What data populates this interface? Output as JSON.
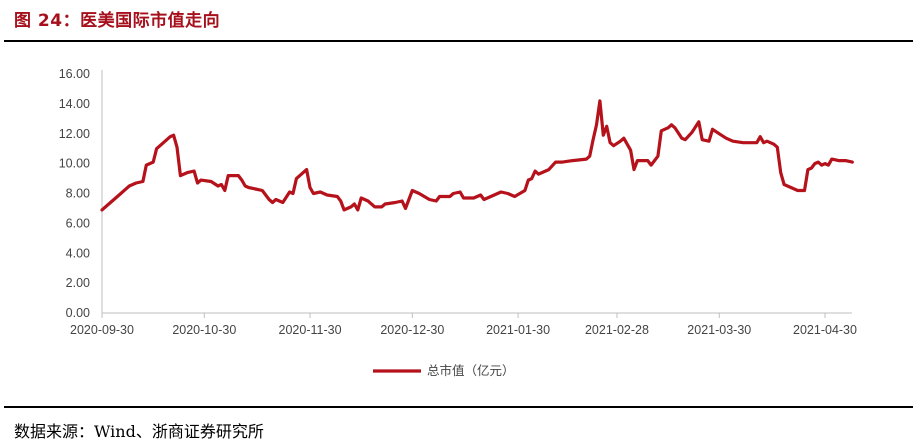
{
  "header": {
    "title": "图 24：医美国际市值走向"
  },
  "footer": {
    "source": "数据来源：Wind、浙商证券研究所"
  },
  "colors": {
    "title": "#a6101d",
    "series": "#b5121b",
    "axis": "#bfbfbf",
    "text": "#444444"
  },
  "chart_data": {
    "type": "line",
    "title": "",
    "xlabel": "",
    "ylabel": "",
    "ylim": [
      0,
      16
    ],
    "yticks": [
      "0.00",
      "2.00",
      "4.00",
      "6.00",
      "8.00",
      "10.00",
      "12.00",
      "14.00",
      "16.00"
    ],
    "xticks": [
      "2020-09-30",
      "2020-10-30",
      "2020-11-30",
      "2020-12-30",
      "2021-01-30",
      "2021-02-28",
      "2021-03-30",
      "2021-04-30"
    ],
    "grid": false,
    "legend": "bottom",
    "series": [
      {
        "name": "总市值（亿元）",
        "points": [
          [
            "2020-09-30",
            6.9
          ],
          [
            "2020-10-02",
            7.3
          ],
          [
            "2020-10-05",
            7.9
          ],
          [
            "2020-10-08",
            8.5
          ],
          [
            "2020-10-10",
            8.7
          ],
          [
            "2020-10-12",
            8.8
          ],
          [
            "2020-10-13",
            9.9
          ],
          [
            "2020-10-15",
            10.1
          ],
          [
            "2020-10-16",
            11.0
          ],
          [
            "2020-10-18",
            11.4
          ],
          [
            "2020-10-20",
            11.8
          ],
          [
            "2020-10-21",
            11.9
          ],
          [
            "2020-10-22",
            11.1
          ],
          [
            "2020-10-23",
            9.2
          ],
          [
            "2020-10-25",
            9.4
          ],
          [
            "2020-10-27",
            9.5
          ],
          [
            "2020-10-28",
            8.7
          ],
          [
            "2020-10-29",
            8.9
          ],
          [
            "2020-11-01",
            8.8
          ],
          [
            "2020-11-03",
            8.5
          ],
          [
            "2020-11-04",
            8.6
          ],
          [
            "2020-11-05",
            8.2
          ],
          [
            "2020-11-06",
            9.2
          ],
          [
            "2020-11-09",
            9.2
          ],
          [
            "2020-11-10",
            8.9
          ],
          [
            "2020-11-11",
            8.5
          ],
          [
            "2020-11-12",
            8.4
          ],
          [
            "2020-11-14",
            8.3
          ],
          [
            "2020-11-16",
            8.2
          ],
          [
            "2020-11-18",
            7.6
          ],
          [
            "2020-11-19",
            7.4
          ],
          [
            "2020-11-20",
            7.6
          ],
          [
            "2020-11-22",
            7.4
          ],
          [
            "2020-11-24",
            8.1
          ],
          [
            "2020-11-25",
            8.0
          ],
          [
            "2020-11-26",
            9.0
          ],
          [
            "2020-11-28",
            9.4
          ],
          [
            "2020-11-29",
            9.6
          ],
          [
            "2020-11-30",
            8.4
          ],
          [
            "2020-12-01",
            8.0
          ],
          [
            "2020-12-03",
            8.1
          ],
          [
            "2020-12-05",
            7.9
          ],
          [
            "2020-12-08",
            7.8
          ],
          [
            "2020-12-09",
            7.5
          ],
          [
            "2020-12-10",
            6.9
          ],
          [
            "2020-12-12",
            7.1
          ],
          [
            "2020-12-13",
            7.3
          ],
          [
            "2020-12-14",
            6.9
          ],
          [
            "2020-12-15",
            7.7
          ],
          [
            "2020-12-17",
            7.5
          ],
          [
            "2020-12-19",
            7.1
          ],
          [
            "2020-12-21",
            7.1
          ],
          [
            "2020-12-22",
            7.3
          ],
          [
            "2020-12-25",
            7.4
          ],
          [
            "2020-12-27",
            7.5
          ],
          [
            "2020-12-28",
            7.0
          ],
          [
            "2020-12-30",
            8.2
          ],
          [
            "2021-01-01",
            8.0
          ],
          [
            "2021-01-04",
            7.6
          ],
          [
            "2021-01-06",
            7.5
          ],
          [
            "2021-01-07",
            7.8
          ],
          [
            "2021-01-10",
            7.8
          ],
          [
            "2021-01-11",
            8.0
          ],
          [
            "2021-01-13",
            8.1
          ],
          [
            "2021-01-14",
            7.7
          ],
          [
            "2021-01-17",
            7.7
          ],
          [
            "2021-01-19",
            7.9
          ],
          [
            "2021-01-20",
            7.6
          ],
          [
            "2021-01-22",
            7.8
          ],
          [
            "2021-01-25",
            8.1
          ],
          [
            "2021-01-27",
            8.0
          ],
          [
            "2021-01-29",
            7.8
          ],
          [
            "2021-02-01",
            8.2
          ],
          [
            "2021-02-02",
            8.9
          ],
          [
            "2021-02-03",
            9.0
          ],
          [
            "2021-02-04",
            9.5
          ],
          [
            "2021-02-05",
            9.3
          ],
          [
            "2021-02-08",
            9.6
          ],
          [
            "2021-02-10",
            10.1
          ],
          [
            "2021-02-12",
            10.1
          ],
          [
            "2021-02-15",
            10.2
          ],
          [
            "2021-02-19",
            10.3
          ],
          [
            "2021-02-20",
            10.5
          ],
          [
            "2021-02-21",
            11.6
          ],
          [
            "2021-02-22",
            12.6
          ],
          [
            "2021-02-23",
            14.2
          ],
          [
            "2021-02-24",
            11.9
          ],
          [
            "2021-02-25",
            12.5
          ],
          [
            "2021-02-26",
            11.4
          ],
          [
            "2021-02-27",
            11.2
          ],
          [
            "2021-03-01",
            11.5
          ],
          [
            "2021-03-02",
            11.7
          ],
          [
            "2021-03-04",
            10.9
          ],
          [
            "2021-03-05",
            9.6
          ],
          [
            "2021-03-06",
            10.2
          ],
          [
            "2021-03-07",
            10.2
          ],
          [
            "2021-03-09",
            10.2
          ],
          [
            "2021-03-10",
            9.9
          ],
          [
            "2021-03-12",
            10.5
          ],
          [
            "2021-03-13",
            12.2
          ],
          [
            "2021-03-15",
            12.4
          ],
          [
            "2021-03-16",
            12.6
          ],
          [
            "2021-03-17",
            12.4
          ],
          [
            "2021-03-19",
            11.7
          ],
          [
            "2021-03-20",
            11.6
          ],
          [
            "2021-03-22",
            12.1
          ],
          [
            "2021-03-24",
            12.8
          ],
          [
            "2021-03-25",
            11.6
          ],
          [
            "2021-03-27",
            11.5
          ],
          [
            "2021-03-28",
            12.3
          ],
          [
            "2021-03-30",
            12.0
          ],
          [
            "2021-04-01",
            11.7
          ],
          [
            "2021-04-03",
            11.5
          ],
          [
            "2021-04-06",
            11.4
          ],
          [
            "2021-04-08",
            11.4
          ],
          [
            "2021-04-10",
            11.4
          ],
          [
            "2021-04-11",
            11.8
          ],
          [
            "2021-04-12",
            11.4
          ],
          [
            "2021-04-13",
            11.5
          ],
          [
            "2021-04-15",
            11.3
          ],
          [
            "2021-04-16",
            11.1
          ],
          [
            "2021-04-17",
            9.4
          ],
          [
            "2021-04-18",
            8.6
          ],
          [
            "2021-04-20",
            8.4
          ],
          [
            "2021-04-22",
            8.2
          ],
          [
            "2021-04-24",
            8.2
          ],
          [
            "2021-04-25",
            9.6
          ],
          [
            "2021-04-26",
            9.7
          ],
          [
            "2021-04-27",
            10.0
          ],
          [
            "2021-04-28",
            10.1
          ],
          [
            "2021-04-29",
            9.9
          ],
          [
            "2021-04-30",
            10.0
          ],
          [
            "2021-05-01",
            9.9
          ],
          [
            "2021-05-02",
            10.3
          ],
          [
            "2021-05-04",
            10.2
          ],
          [
            "2021-05-06",
            10.2
          ],
          [
            "2021-05-08",
            10.1
          ]
        ]
      }
    ]
  }
}
